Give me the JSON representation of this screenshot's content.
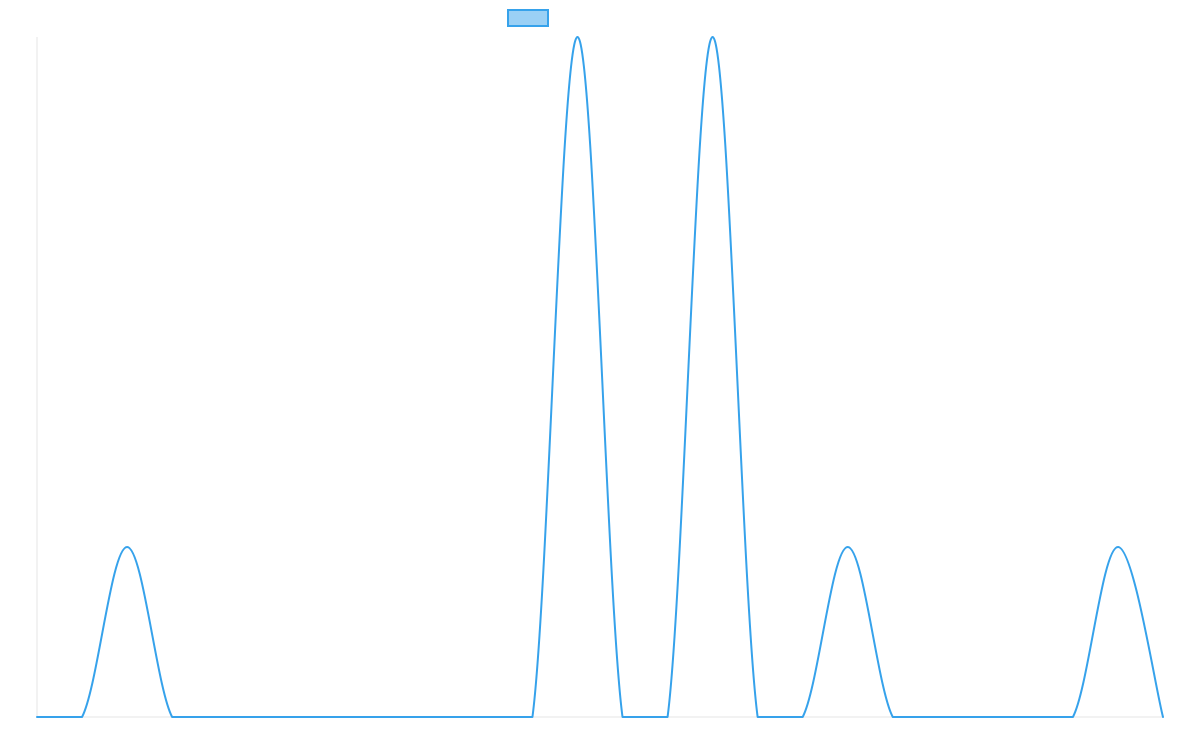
{
  "chart_data": {
    "type": "line",
    "title": "",
    "xlabel": "",
    "ylabel": "",
    "grid": false,
    "legend_position": "top-center",
    "series": [
      {
        "name": "",
        "color": "#36A2EB",
        "fill": "#9AD0F5",
        "x": [
          0,
          1,
          2,
          3,
          4,
          5,
          6,
          7,
          8,
          9,
          10,
          11,
          12,
          13,
          14,
          15,
          16,
          17,
          18,
          19,
          20,
          21,
          22,
          23,
          24,
          25
        ],
        "y": [
          0,
          0,
          1,
          0,
          0,
          0,
          0,
          0,
          0,
          0,
          0,
          0,
          4,
          0,
          0,
          4,
          0,
          0,
          1,
          0,
          0,
          0,
          0,
          0,
          1,
          0
        ]
      }
    ],
    "xlim": [
      0,
      25
    ],
    "ylim": [
      0,
      4
    ]
  }
}
